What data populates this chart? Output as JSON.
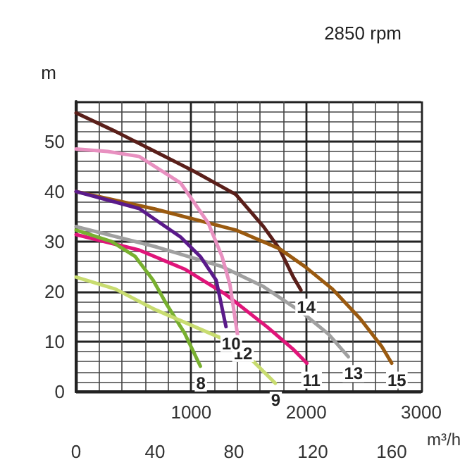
{
  "chart_data": {
    "type": "line",
    "title": "2850 rpm",
    "xlabel": "m³/h",
    "ylabel": "m",
    "xlim": [
      0,
      175
    ],
    "xticks": [
      0,
      40,
      80,
      120,
      160
    ],
    "x2lim": [
      0,
      3000
    ],
    "x2ticks": [
      1000,
      2000,
      3000
    ],
    "ylim": [
      0,
      58
    ],
    "yticks": [
      0,
      10,
      20,
      30,
      40,
      50
    ],
    "grid": true,
    "legend": false,
    "marker": "none",
    "line_style": "solid",
    "series": [
      {
        "name": "14",
        "color": "#5a1f1a",
        "x": [
          0,
          20,
          40,
          60,
          81,
          95,
          103,
          110,
          114
        ],
        "values": [
          55.7,
          52,
          48,
          44,
          39.4,
          33,
          28.6,
          23,
          20.3
        ]
      },
      {
        "name": "15",
        "color": "#9a5a10",
        "x": [
          0,
          40,
          81,
          103,
          116,
          130,
          144,
          155,
          160
        ],
        "values": [
          40,
          36.5,
          32.3,
          28.6,
          25,
          20.5,
          14.6,
          9,
          5.7
        ]
      },
      {
        "name": "13",
        "color": "#a0a0a0",
        "x": [
          0,
          40,
          74,
          95,
          115,
          128,
          138
        ],
        "values": [
          33,
          29,
          25,
          21,
          15.7,
          11.5,
          7
        ]
      },
      {
        "name": "11",
        "color": "#e0157a",
        "x": [
          0,
          32,
          55,
          76,
          97,
          110,
          117
        ],
        "values": [
          31.4,
          28.3,
          24.5,
          19.4,
          12.9,
          8.5,
          5.7
        ]
      },
      {
        "name": "12",
        "color": "#e890c0",
        "x": [
          0,
          16,
          32,
          53,
          67,
          74,
          78,
          82
        ],
        "values": [
          48.5,
          48,
          47,
          41.7,
          33.7,
          27,
          21.4,
          11
        ]
      },
      {
        "name": "10",
        "color": "#5a1a8a",
        "x": [
          0,
          32,
          53,
          63,
          71,
          76
        ],
        "values": [
          40,
          36.6,
          30.9,
          27,
          22.3,
          13
        ]
      },
      {
        "name": "8",
        "color": "#78b030",
        "x": [
          0,
          18,
          30,
          39,
          46,
          55,
          63
        ],
        "values": [
          32.3,
          30,
          27,
          22.3,
          17.4,
          11.7,
          5.1
        ]
      },
      {
        "name": "9",
        "color": "#c8dc70",
        "x": [
          0,
          20,
          39,
          60,
          76,
          90,
          101
        ],
        "values": [
          22.9,
          20.5,
          16.6,
          13,
          10.3,
          6,
          1.7
        ]
      }
    ]
  }
}
